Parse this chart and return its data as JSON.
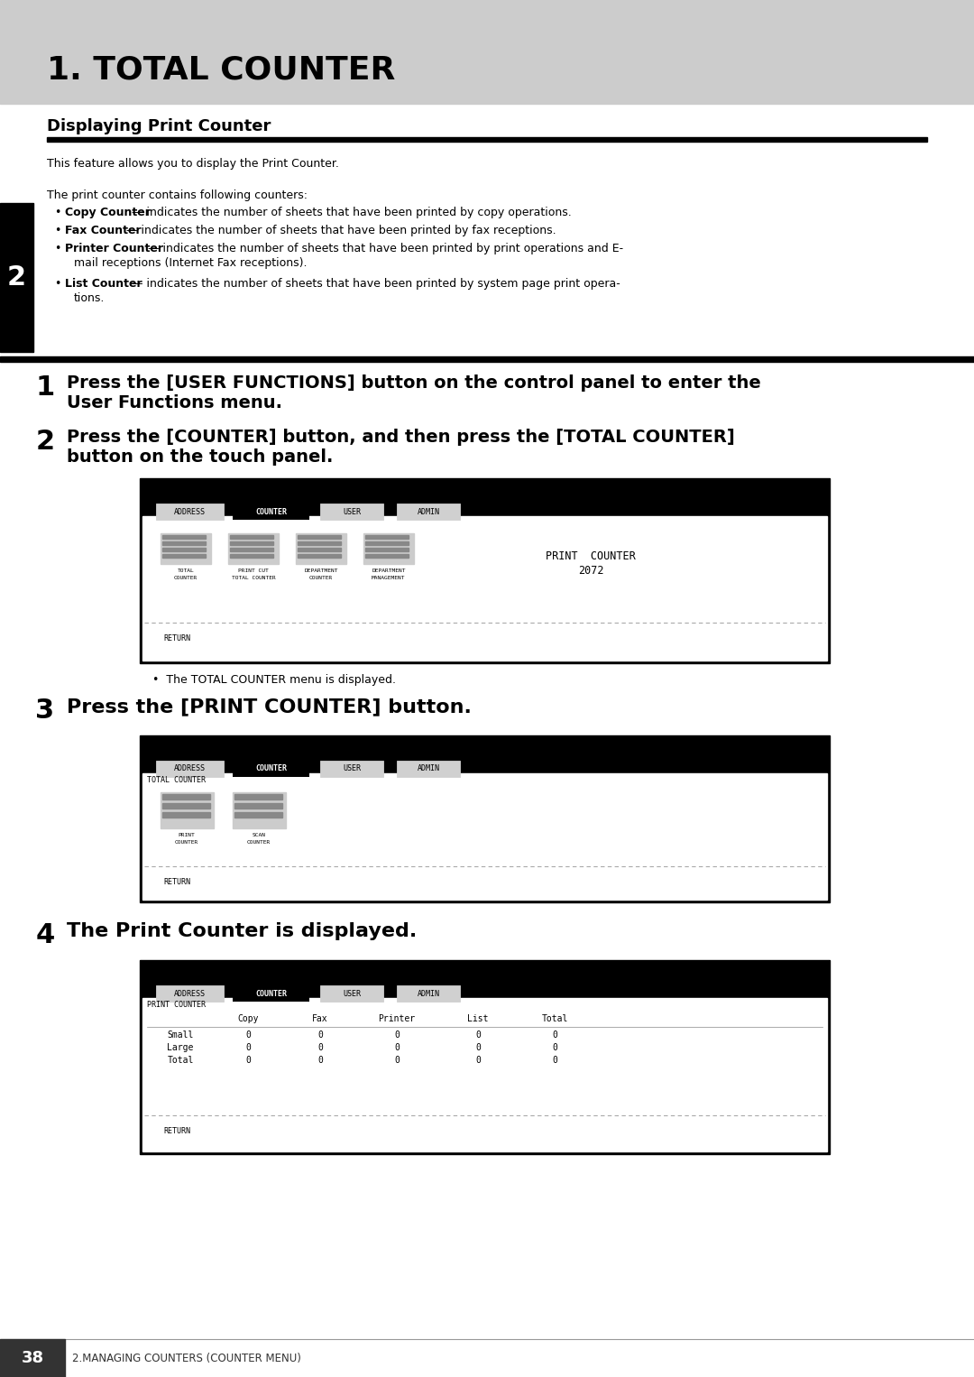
{
  "title": "1. TOTAL COUNTER",
  "section_title": "Displaying Print Counter",
  "body_text_1": "This feature allows you to display the Print Counter.",
  "body_text_2": "The print counter contains following counters:",
  "bullet_bold": [
    "Copy Counter",
    "Fax Counter",
    "Printer Counter",
    "List Counter"
  ],
  "bullet_rest": [
    " — indicates the number of sheets that have been printed by copy operations.",
    " — indicates the number of sheets that have been printed by fax receptions.",
    " — indicates the number of sheets that have been printed by print operations and E-",
    " — indicates the number of sheets that have been printed by system page print opera-"
  ],
  "bullet_cont": [
    "",
    "",
    "mail receptions (Internet Fax receptions).",
    "tions."
  ],
  "step1_text_line1": "Press the [USER FUNCTIONS] button on the control panel to enter the",
  "step1_text_line2": "User Functions menu.",
  "step2_text_line1": "Press the [COUNTER] button, and then press the [TOTAL COUNTER]",
  "step2_text_line2": "button on the touch panel.",
  "step3_text": "Press the [PRINT COUNTER] button.",
  "step4_text": "The Print Counter is displayed.",
  "note2": "The TOTAL COUNTER menu is displayed.",
  "tab_buttons": [
    "ADDRESS",
    "COUNTER",
    "USER",
    "ADMIN"
  ],
  "screen1_icons": [
    "TOTAL\nCOUNTER",
    "PRINT CUT\nTOTAL COUNTER",
    "DEPARTMENT\nCOUNTER",
    "DEPARTMENT\nMANAGEMENT"
  ],
  "screen1_info": [
    "PRINT COUNTER",
    "2072"
  ],
  "screen2_icons": [
    "PRINT\nCOUNTER",
    "SCAN\nCOUNTER"
  ],
  "screen3_header": [
    "",
    "Copy",
    "Fax",
    "Printer",
    "List",
    "Total"
  ],
  "screen3_rows": [
    [
      "Small",
      "0",
      "0",
      "0",
      "0",
      "0"
    ],
    [
      "Large",
      "0",
      "0",
      "0",
      "0",
      "0"
    ],
    [
      "Total",
      "0",
      "0",
      "0",
      "0",
      "0"
    ]
  ],
  "footer_page": "38",
  "footer_text": "2.MANAGING COUNTERS (COUNTER MENU)",
  "header_gray": "#cccccc",
  "black": "#000000",
  "white": "#ffffff",
  "light_gray": "#e8e8e8",
  "mid_gray": "#aaaaaa"
}
